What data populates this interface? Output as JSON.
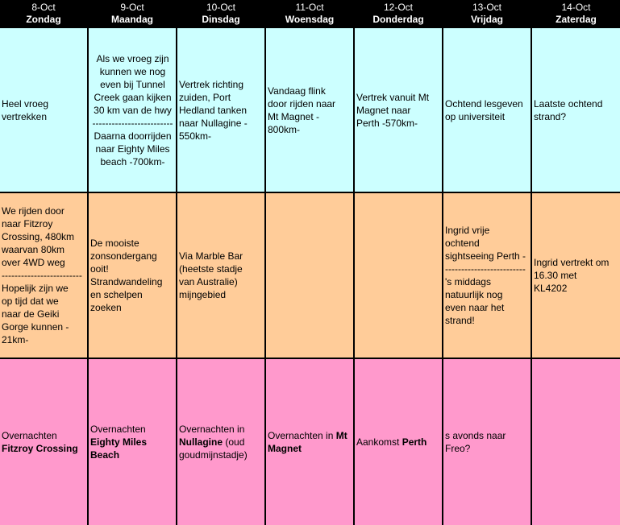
{
  "days": [
    {
      "date": "8-Oct",
      "day": "Zondag"
    },
    {
      "date": "9-Oct",
      "day": "Maandag"
    },
    {
      "date": "10-Oct",
      "day": "Dinsdag"
    },
    {
      "date": "11-Oct",
      "day": "Woensdag"
    },
    {
      "date": "12-Oct",
      "day": "Donderdag"
    },
    {
      "date": "13-Oct",
      "day": "Vrijdag"
    },
    {
      "date": "14-Oct",
      "day": "Zaterdag"
    }
  ],
  "row1": [
    {
      "text": "Heel vroeg\nvertrekken"
    },
    {
      "text": "Als we vroeg zijn\nkunnen we nog\neven bij Tunnel\nCreek gaan kijken\n30 km van de hwy\n-------------------------\nDaarna doorrijden\nnaar Eighty  Miles\nbeach -700km-",
      "center": true
    },
    {
      "text": "Vertrek richting\nzuiden, Port\nHedland tanken\nnaar Nullagine -\n550km-"
    },
    {
      "text": "Vandaag flink\ndoor rijden naar\nMt Magnet -\n800km-"
    },
    {
      "text": "Vertrek vanuit Mt\nMagnet naar\nPerth -570km-"
    },
    {
      "text": "Ochtend lesgeven\nop universiteit"
    },
    {
      "text": "Laatste ochtend\nstrand?"
    }
  ],
  "row2": [
    {
      "text": "We rijden door\nnaar Fitzroy\nCrossing,  480km\nwaarvan 80km\nover 4WD weg\n-------------------------\nHopelijk zijn we\nop tijd dat we\nnaar de Geiki\nGorge kunnen -\n21km-"
    },
    {
      "text": "De mooiste\nzonsondergang\nooit!\nStrandwandeling\nen schelpen\nzoeken"
    },
    {
      "text": "Via Marble Bar\n(heetste stadje\nvan Australie)\nmijngebied"
    },
    {
      "text": ""
    },
    {
      "text": ""
    },
    {
      "text": "Ingrid vrije\nochtend\nsightseeing Perth -\n-------------------------\n's middags\nnatuurlijk nog\neven naar het\nstrand!"
    },
    {
      "text": "Ingrid vertrekt om\n16.30 met\nKL4202"
    }
  ],
  "row3": [
    {
      "pre": "Overnachten",
      "bold": "Fitzroy Crossing",
      "post": ""
    },
    {
      "pre": "Overnachten",
      "bold": "Eighty Miles\nBeach",
      "post": ""
    },
    {
      "pre": "Overnachten in",
      "bold": "Nullagine",
      "post": " (oud\ngoudmijnstadje)"
    },
    {
      "pre": "Overnachten in ",
      "bold": "Mt\nMagnet",
      "post": ""
    },
    {
      "pre": "Aankomst ",
      "bold": "Perth",
      "post": ""
    },
    {
      "pre": "s avonds naar\nFreo?",
      "bold": "",
      "post": ""
    },
    {
      "pre": "",
      "bold": "",
      "post": ""
    }
  ]
}
